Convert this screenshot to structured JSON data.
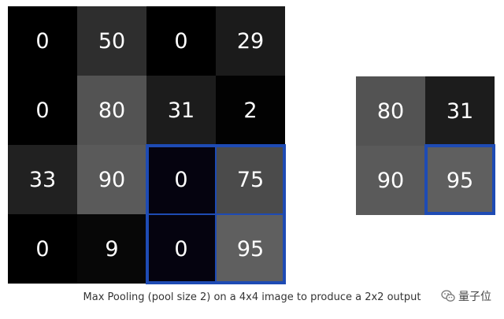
{
  "input_grid": {
    "values": [
      [
        0,
        50,
        0,
        29
      ],
      [
        0,
        80,
        31,
        2
      ],
      [
        33,
        90,
        0,
        75
      ],
      [
        0,
        9,
        0,
        95
      ]
    ],
    "colors": [
      [
        "#000000",
        "#2e2e2e",
        "#000000",
        "#1b1b1b"
      ],
      [
        "#000000",
        "#535353",
        "#1c1c1c",
        "#020202"
      ],
      [
        "#212121",
        "#5a5a5a",
        "#05030f",
        "#4b4b4b"
      ],
      [
        "#000000",
        "#070707",
        "#05030f",
        "#5f5f5f"
      ]
    ]
  },
  "output_grid": {
    "values": [
      [
        80,
        31
      ],
      [
        90,
        95
      ]
    ],
    "colors": [
      [
        "#535353",
        "#1c1c1c"
      ],
      [
        "#5a5a5a",
        "#5f5f5f"
      ]
    ]
  },
  "highlight_color": "#1e4bb4",
  "caption": "Max Pooling (pool size 2) on a 4x4 image to produce a 2x2 output",
  "watermark": {
    "icon": "wechat-icon",
    "text": "量子位"
  }
}
